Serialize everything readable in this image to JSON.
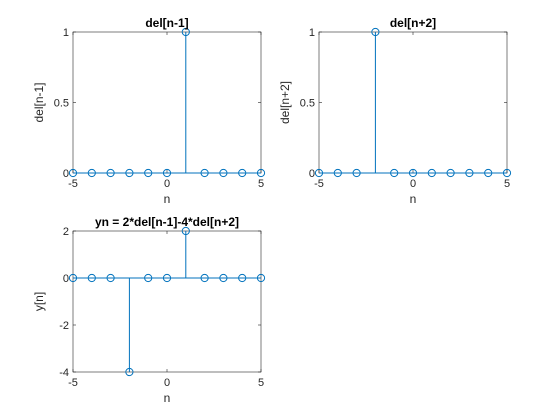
{
  "chart_data": [
    {
      "type": "stem",
      "title": "del[n-1]",
      "xlabel": "n",
      "ylabel": "del[n-1]",
      "x": [
        -5,
        -4,
        -3,
        -2,
        -1,
        0,
        1,
        2,
        3,
        4,
        5
      ],
      "y": [
        0,
        0,
        0,
        0,
        0,
        0,
        1,
        0,
        0,
        0,
        0
      ],
      "xlim": [
        -5,
        5
      ],
      "ylim": [
        0,
        1
      ],
      "xticks": [
        -5,
        0,
        5
      ],
      "yticks": [
        0,
        0.5,
        1
      ],
      "xtick_labels": [
        "-5",
        "0",
        "5"
      ],
      "ytick_labels": [
        "0",
        "0.5",
        "1"
      ],
      "color": "#0072BD"
    },
    {
      "type": "stem",
      "title": "del[n+2]",
      "xlabel": "n",
      "ylabel": "del[n+2]",
      "x": [
        -5,
        -4,
        -3,
        -2,
        -1,
        0,
        1,
        2,
        3,
        4,
        5
      ],
      "y": [
        0,
        0,
        0,
        1,
        0,
        0,
        0,
        0,
        0,
        0,
        0
      ],
      "xlim": [
        -5,
        5
      ],
      "ylim": [
        0,
        1
      ],
      "xticks": [
        -5,
        0,
        5
      ],
      "yticks": [
        0,
        0.5,
        1
      ],
      "xtick_labels": [
        "-5",
        "0",
        "5"
      ],
      "ytick_labels": [
        "0",
        "0.5",
        "1"
      ],
      "color": "#0072BD"
    },
    {
      "type": "stem",
      "title": "yn = 2*del[n-1]-4*del[n+2]",
      "xlabel": "n",
      "ylabel": "y[n]",
      "x": [
        -5,
        -4,
        -3,
        -2,
        -1,
        0,
        1,
        2,
        3,
        4,
        5
      ],
      "y": [
        0,
        0,
        0,
        -4,
        0,
        0,
        2,
        0,
        0,
        0,
        0
      ],
      "xlim": [
        -5,
        5
      ],
      "ylim": [
        -4,
        2
      ],
      "xticks": [
        -5,
        0,
        5
      ],
      "yticks": [
        -4,
        -2,
        0,
        2
      ],
      "xtick_labels": [
        "-5",
        "0",
        "5"
      ],
      "ytick_labels": [
        "-4",
        "-2",
        "0",
        "2"
      ],
      "color": "#0072BD"
    }
  ]
}
